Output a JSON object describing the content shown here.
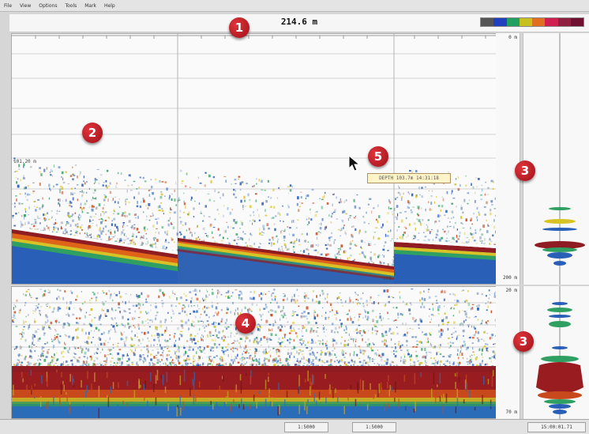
{
  "menu": [
    "File",
    "View",
    "Options",
    "Tools",
    "Mark",
    "Help"
  ],
  "depth_readout": "214.6 m",
  "palette_colors": [
    "#555555",
    "#2040c0",
    "#20a060",
    "#c8c020",
    "#e07020",
    "#d02050",
    "#902040",
    "#701030"
  ],
  "main_echogram": {
    "marker_label": "101.20 m",
    "bottom_depth_label": "200"
  },
  "scale_top": {
    "top_label": "0 m",
    "bottom_label": "200 m"
  },
  "scale_bottom": {
    "top_label": "20 m",
    "bottom_label": "70 m"
  },
  "tooltip": "DEPTH 103.7m 14:31:18",
  "status": {
    "field_1": "1:5000",
    "field_2": "1:5000",
    "field_3": "15:00:01.71"
  },
  "callouts": [
    "1",
    "2",
    "3",
    "4",
    "5",
    "3"
  ]
}
